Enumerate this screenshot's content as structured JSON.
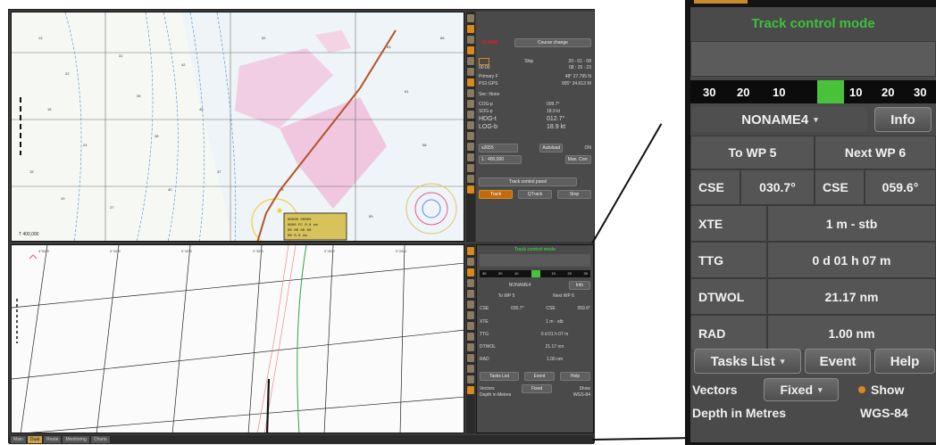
{
  "main_window": {
    "bottom_tabs": [
      {
        "label": "Main",
        "active": false
      },
      {
        "label": "Dual",
        "active": true
      },
      {
        "label": "Route",
        "active": false
      },
      {
        "label": "Monitoring",
        "active": false
      },
      {
        "label": "Charts",
        "active": false
      }
    ],
    "top_panel": {
      "alarm": "ALARM",
      "course_change": "Course change",
      "ship_label": "Ship",
      "date": "20 - 01 - 08",
      "time_left": "00:00",
      "time_right": "08 : 25 : 23",
      "primary": "Primary",
      "primary_flag": "F",
      "lat": "48° 27.795 N",
      "sensor": "PS1:GPS",
      "lon": "005° 34.613 W",
      "sec": "Sec: None",
      "rows": [
        {
          "label": "COG-p",
          "value": "009.7°"
        },
        {
          "label": "SOG-p",
          "value": "18.9 kt"
        },
        {
          "label": "HDG-t",
          "value": "012.7°"
        },
        {
          "label": "LOG-b",
          "value": "18.9 kt"
        }
      ],
      "chart_id": "s2655",
      "autoload": "Autoload",
      "autoload_state": "ON",
      "scale": "1 : 400,000",
      "man_corr": "Man. Corr.",
      "track_control_panel": "Track control panel",
      "buttons": [
        "Track",
        "QTrack",
        "Stop"
      ]
    },
    "bottom_panel": {
      "title": "Track control mode",
      "scale_ticks": [
        "30",
        "20",
        "10",
        "10",
        "20",
        "30"
      ],
      "route_name": "NONAME4",
      "info": "Info",
      "to_wp": "To WP 5",
      "next_wp": "Next WP 6",
      "cse_label": "CSE",
      "cse_to": "030.7°",
      "cse_next": "059.6°",
      "rows": [
        {
          "label": "XTE",
          "value": "1 m - stb"
        },
        {
          "label": "TTG",
          "value": "0 d 01 h 07 m"
        },
        {
          "label": "DTWOL",
          "value": "21.17 nm"
        },
        {
          "label": "RAD",
          "value": "1.00 nm"
        }
      ],
      "tasks_list": "Tasks List",
      "event": "Event",
      "help": "Help",
      "vectors": "Vectors",
      "vectors_value": "Fixed",
      "show": "Show",
      "depth": "Depth in Metres",
      "datum": "WGS-84"
    },
    "chart_label_top": "T 400,000",
    "ship_box_lines": [
      "00000 00000",
      "0000 FC 0.0 nm",
      "00 00 09 00",
      "00 0.0 nm"
    ]
  },
  "zoom": {
    "title": "Track control mode",
    "scale_ticks": [
      "30",
      "20",
      "10",
      "10",
      "20",
      "30"
    ],
    "route_name": "NONAME4",
    "info": "Info",
    "to_wp": "To WP 5",
    "next_wp": "Next WP 6",
    "cse_label": "CSE",
    "cse_to": "030.7°",
    "cse_next": "059.6°",
    "rows": [
      {
        "label": "XTE",
        "value": "1 m - stb"
      },
      {
        "label": "TTG",
        "value": "0 d 01 h 07 m"
      },
      {
        "label": "DTWOL",
        "value": "21.17 nm"
      },
      {
        "label": "RAD",
        "value": "1.00 nm"
      }
    ],
    "tasks_list": "Tasks List",
    "event": "Event",
    "help": "Help",
    "vectors": "Vectors",
    "vectors_value": "Fixed",
    "show": "Show",
    "depth": "Depth in Metres",
    "datum": "WGS-84"
  },
  "colors": {
    "accent_green": "#49c23b",
    "title_green": "#3cc23c",
    "orange": "#d98a1c"
  }
}
